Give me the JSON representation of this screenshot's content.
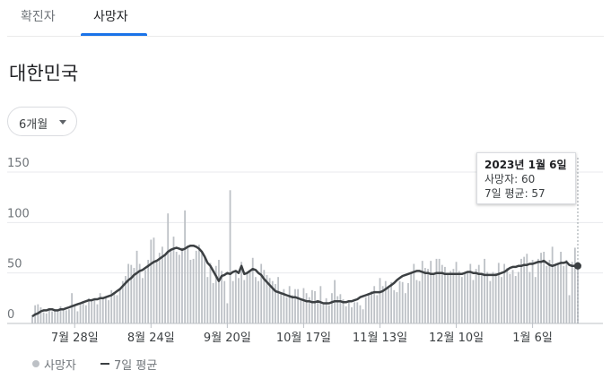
{
  "tabs": [
    {
      "label": "확진자",
      "active": false
    },
    {
      "label": "사망자",
      "active": true
    }
  ],
  "region": "대한민국",
  "range_selector": {
    "label": "6개월"
  },
  "tooltip": {
    "date": "2023년 1월 6일",
    "deaths_label": "사망자: 60",
    "avg_label": "7일 평균: 57"
  },
  "legend": {
    "bars": "사망자",
    "line": "7일 평균"
  },
  "colors": {
    "bars": "#bdc1c6",
    "line": "#3c4043",
    "tab_accent": "#1a73e8",
    "grid": "#e8eaed"
  },
  "chart_data": {
    "type": "bar",
    "y_ticks": [
      "150",
      "100",
      "50",
      "0"
    ],
    "ylim": [
      0,
      150
    ],
    "x_tick_labels": [
      "7월 28일",
      "8월 24일",
      "9월 20일",
      "10월 17일",
      "11월 13일",
      "12월 10일",
      "1월 6일"
    ],
    "bar_values": [
      8,
      18,
      19,
      16,
      11,
      10,
      13,
      12,
      14,
      12,
      17,
      13,
      13,
      14,
      30,
      17,
      12,
      20,
      21,
      18,
      25,
      22,
      24,
      19,
      30,
      24,
      26,
      23,
      33,
      30,
      28,
      34,
      42,
      47,
      59,
      58,
      55,
      72,
      59,
      45,
      53,
      63,
      83,
      85,
      61,
      70,
      76,
      68,
      109,
      74,
      86,
      71,
      68,
      75,
      112,
      76,
      63,
      64,
      72,
      78,
      70,
      66,
      46,
      60,
      40,
      57,
      63,
      52,
      42,
      20,
      132,
      42,
      51,
      45,
      61,
      43,
      51,
      52,
      65,
      46,
      42,
      59,
      53,
      48,
      45,
      42,
      39,
      46,
      31,
      34,
      26,
      37,
      28,
      34,
      34,
      25,
      35,
      30,
      26,
      33,
      32,
      22,
      37,
      19,
      25,
      18,
      30,
      43,
      27,
      29,
      24,
      17,
      23,
      16,
      21,
      21,
      18,
      14,
      26,
      28,
      32,
      37,
      28,
      45,
      37,
      42,
      36,
      41,
      33,
      31,
      42,
      41,
      30,
      40,
      49,
      59,
      43,
      42,
      62,
      55,
      54,
      62,
      48,
      64,
      64,
      58,
      56,
      48,
      52,
      54,
      61,
      52,
      46,
      49,
      52,
      59,
      43,
      54,
      58,
      50,
      64,
      51,
      42,
      51,
      50,
      60,
      46,
      59,
      55,
      49,
      53,
      47,
      51,
      64,
      66,
      69,
      51,
      63,
      46,
      64,
      70,
      71,
      57,
      63,
      76,
      58,
      60,
      71,
      57,
      63,
      28,
      61,
      75,
      60
    ],
    "avg_values": [
      7,
      9,
      10,
      12,
      13,
      13,
      14,
      14,
      13,
      13,
      14,
      14,
      15,
      16,
      17,
      18,
      19,
      20,
      21,
      22,
      23,
      23,
      24,
      24,
      25,
      25,
      26,
      27,
      28,
      30,
      32,
      34,
      37,
      40,
      43,
      45,
      48,
      50,
      52,
      53,
      55,
      57,
      59,
      61,
      62,
      64,
      66,
      68,
      71,
      73,
      74,
      75,
      74,
      73,
      74,
      76,
      77,
      77,
      76,
      74,
      71,
      66,
      60,
      57,
      52,
      47,
      42,
      47,
      48,
      50,
      49,
      51,
      52,
      50,
      57,
      49,
      50,
      52,
      54,
      53,
      50,
      48,
      44,
      41,
      38,
      35,
      32,
      31,
      30,
      29,
      28,
      27,
      26,
      26,
      25,
      24,
      23,
      22,
      22,
      21,
      21,
      22,
      21,
      20,
      20,
      20,
      21,
      22,
      22,
      22,
      21,
      21,
      22,
      22,
      23,
      24,
      26,
      27,
      28,
      29,
      30,
      31,
      31,
      31,
      32,
      34,
      36,
      38,
      40,
      43,
      45,
      47,
      48,
      49,
      50,
      51,
      52,
      52,
      51,
      50,
      50,
      49,
      49,
      50,
      50,
      50,
      49,
      49,
      49,
      49,
      49,
      49,
      49,
      50,
      51,
      51,
      50,
      50,
      49,
      49,
      48,
      48,
      48,
      48,
      48,
      49,
      50,
      51,
      53,
      55,
      56,
      56,
      57,
      57,
      58,
      58,
      59,
      59,
      60,
      61,
      61,
      62,
      60,
      58,
      57,
      58,
      59,
      60,
      60,
      61,
      58,
      57,
      57,
      57
    ]
  }
}
